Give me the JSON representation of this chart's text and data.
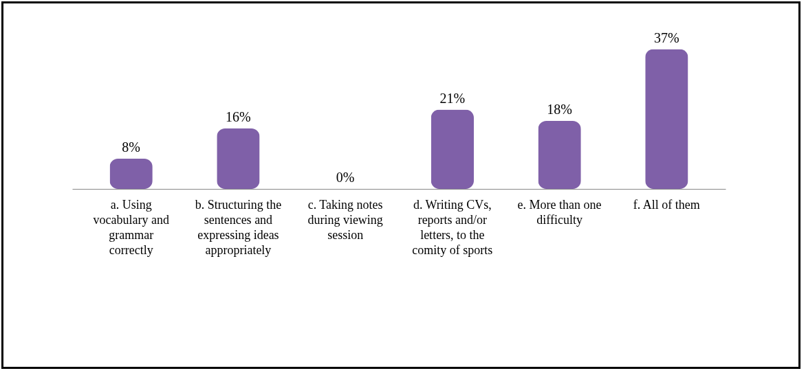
{
  "chart_data": {
    "type": "bar",
    "categories": [
      "a. Using vocabulary and grammar correctly",
      "b. Structuring the sentences and expressing ideas appropriately",
      "c. Taking notes during viewing session",
      "d. Writing CVs, reports and/or letters,  to the comity of sports",
      "e. More than one difficulty",
      "f.  All of them"
    ],
    "values": [
      8,
      16,
      0,
      21,
      18,
      37
    ],
    "value_labels": [
      "8%",
      "16%",
      "0%",
      "21%",
      "18%",
      "37%"
    ],
    "color": "#7f60a8",
    "tick_labels": "x"
  }
}
